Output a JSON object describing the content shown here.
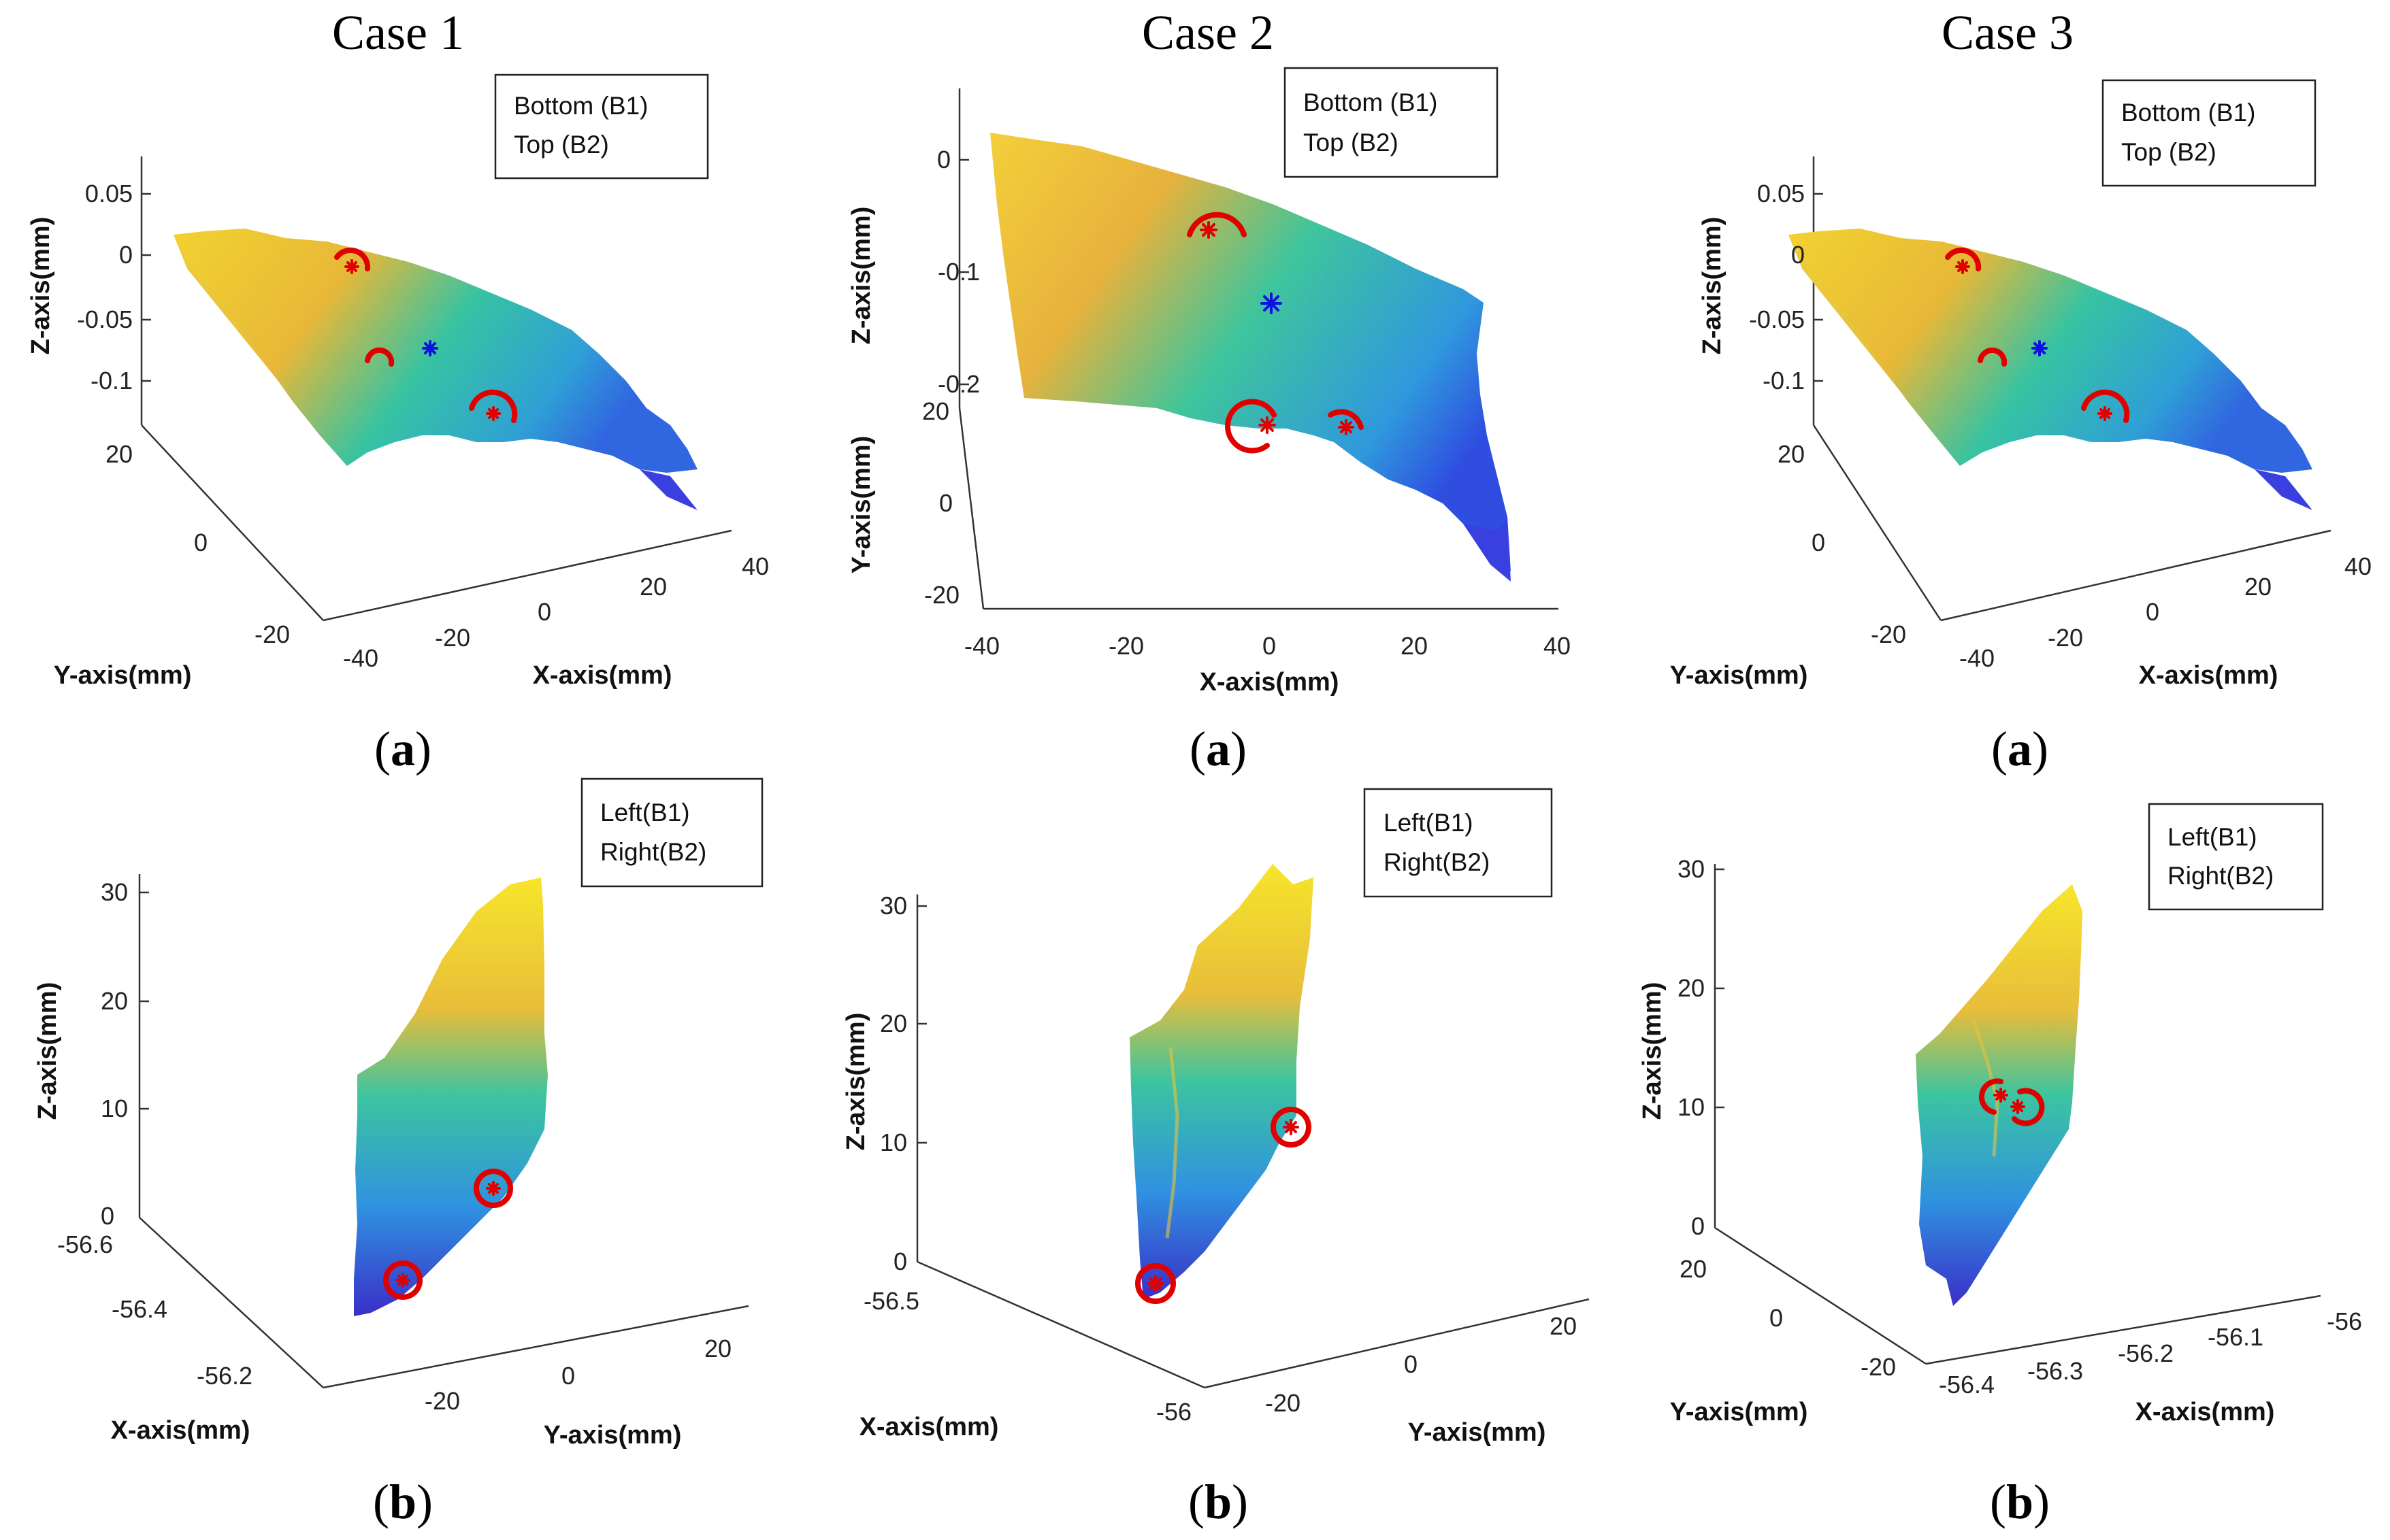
{
  "figure": {
    "case_titles": [
      "Case 1",
      "Case 2",
      "Case 3"
    ],
    "row_labels": [
      "a",
      "b"
    ]
  },
  "colors": {
    "surface_top": "#f2d230",
    "surface_mid": "#34bfa0",
    "surface_low": "#2f88e0",
    "surface_bottom": "#3a2fc8",
    "marker_red": "#e00000",
    "marker_blue": "#1010e0"
  },
  "chart_data": [
    {
      "type": "surface3d",
      "case": "Case 1",
      "panel": "a",
      "legend": [
        "Bottom (B1)",
        "Top (B2)"
      ],
      "xlabel": "X-axis(mm)",
      "ylabel": "Y-axis(mm)",
      "zlabel": "Z-axis(mm)",
      "xticks": [
        "-40",
        "-20",
        "0",
        "20",
        "40"
      ],
      "yticks": [
        "-20",
        "0",
        "20"
      ],
      "zticks": [
        "0.05",
        "0",
        "-0.05",
        "-0.1"
      ],
      "xlim": [
        -40,
        40
      ],
      "ylim": [
        -25,
        25
      ],
      "zlim": [
        -0.15,
        0.07
      ],
      "markers": [
        {
          "kind": "red-arc-star",
          "x": -30,
          "y": 5,
          "z": 0.01
        },
        {
          "kind": "red-arc-star",
          "x": -12,
          "y": -18,
          "z": -0.07
        },
        {
          "kind": "red-arc",
          "x": -22,
          "y": -2,
          "z": -0.06
        },
        {
          "kind": "blue-star",
          "x": -8,
          "y": 2,
          "z": -0.04
        }
      ]
    },
    {
      "type": "surface3d",
      "case": "Case 2",
      "panel": "a",
      "legend": [
        "Bottom (B1)",
        "Top (B2)"
      ],
      "xlabel": "X-axis(mm)",
      "ylabel": "Y-axis(mm)",
      "zlabel": "Z-axis(mm)",
      "xticks": [
        "-40",
        "-20",
        "0",
        "20",
        "40"
      ],
      "yticks": [
        "-20",
        "0",
        "20"
      ],
      "zticks": [
        "0",
        "-0.1",
        "-0.2"
      ],
      "xlim": [
        -40,
        40
      ],
      "ylim": [
        -22,
        22
      ],
      "zlim": [
        -0.25,
        0.05
      ],
      "markers": [
        {
          "kind": "red-arc-star",
          "x": -8,
          "y": 20,
          "z": -0.08
        },
        {
          "kind": "blue-star",
          "x": 0,
          "y": 15,
          "z": -0.12
        },
        {
          "kind": "red-arc-star",
          "x": 0,
          "y": 5,
          "z": -0.2
        },
        {
          "kind": "red-arc-star",
          "x": 12,
          "y": 3,
          "z": -0.2
        }
      ]
    },
    {
      "type": "surface3d",
      "case": "Case 3",
      "panel": "a",
      "legend": [
        "Bottom (B1)",
        "Top (B2)"
      ],
      "xlabel": "X-axis(mm)",
      "ylabel": "Y-axis(mm)",
      "zlabel": "Z-axis(mm)",
      "xticks": [
        "-40",
        "-20",
        "0",
        "20",
        "40"
      ],
      "yticks": [
        "-20",
        "0",
        "20"
      ],
      "zticks": [
        "0.05",
        "0",
        "-0.05",
        "-0.1"
      ],
      "xlim": [
        -40,
        40
      ],
      "ylim": [
        -25,
        25
      ],
      "zlim": [
        -0.15,
        0.07
      ],
      "markers": [
        {
          "kind": "red-arc-star",
          "x": -30,
          "y": 5,
          "z": 0.01
        },
        {
          "kind": "red-arc-star",
          "x": -12,
          "y": -18,
          "z": -0.07
        },
        {
          "kind": "red-arc",
          "x": -22,
          "y": -2,
          "z": -0.06
        },
        {
          "kind": "blue-star",
          "x": -8,
          "y": 2,
          "z": -0.04
        }
      ]
    },
    {
      "type": "surface3d",
      "case": "Case 1",
      "panel": "b",
      "legend": [
        "Left(B1)",
        "Right(B2)"
      ],
      "xlabel": "X-axis(mm)",
      "ylabel": "Y-axis(mm)",
      "zlabel": "Z-axis(mm)",
      "xticks": [
        "-56.6",
        "-56.4",
        "-56.2"
      ],
      "yticks": [
        "-20",
        "0",
        "20"
      ],
      "zticks": [
        "30",
        "20",
        "10",
        "0"
      ],
      "zlim": [
        0,
        30
      ],
      "markers": [
        {
          "kind": "red-ring-star",
          "x": -56.3,
          "y": -5,
          "z": 2
        },
        {
          "kind": "red-ring-star",
          "x": -56.3,
          "y": -22,
          "z": 0
        }
      ]
    },
    {
      "type": "surface3d",
      "case": "Case 2",
      "panel": "b",
      "legend": [
        "Left(B1)",
        "Right(B2)"
      ],
      "xlabel": "X-axis(mm)",
      "ylabel": "Y-axis(mm)",
      "zlabel": "Z-axis(mm)",
      "xticks": [
        "-56.5",
        "-56"
      ],
      "yticks": [
        "-20",
        "0",
        "20"
      ],
      "zticks": [
        "30",
        "20",
        "10",
        "0"
      ],
      "zlim": [
        0,
        30
      ],
      "markers": [
        {
          "kind": "red-ring-star",
          "x": -56.2,
          "y": 5,
          "z": 4
        },
        {
          "kind": "red-ring-star",
          "x": -56.2,
          "y": -20,
          "z": 0
        }
      ]
    },
    {
      "type": "surface3d",
      "case": "Case 3",
      "panel": "b",
      "legend": [
        "Left(B1)",
        "Right(B2)"
      ],
      "xlabel": "X-axis(mm)",
      "ylabel": "Y-axis(mm)",
      "zlabel": "Z-axis(mm)",
      "xticks": [
        "-56.4",
        "-56.3",
        "-56.2",
        "-56.1",
        "-56"
      ],
      "yticks": [
        "-20",
        "0",
        "20"
      ],
      "zticks": [
        "30",
        "20",
        "10",
        "0"
      ],
      "zlim": [
        0,
        30
      ],
      "markers": [
        {
          "kind": "red-arc-star",
          "x": -56.25,
          "y": 0,
          "z": 12
        },
        {
          "kind": "red-arc-star",
          "x": -56.2,
          "y": 2,
          "z": 13
        }
      ]
    }
  ]
}
